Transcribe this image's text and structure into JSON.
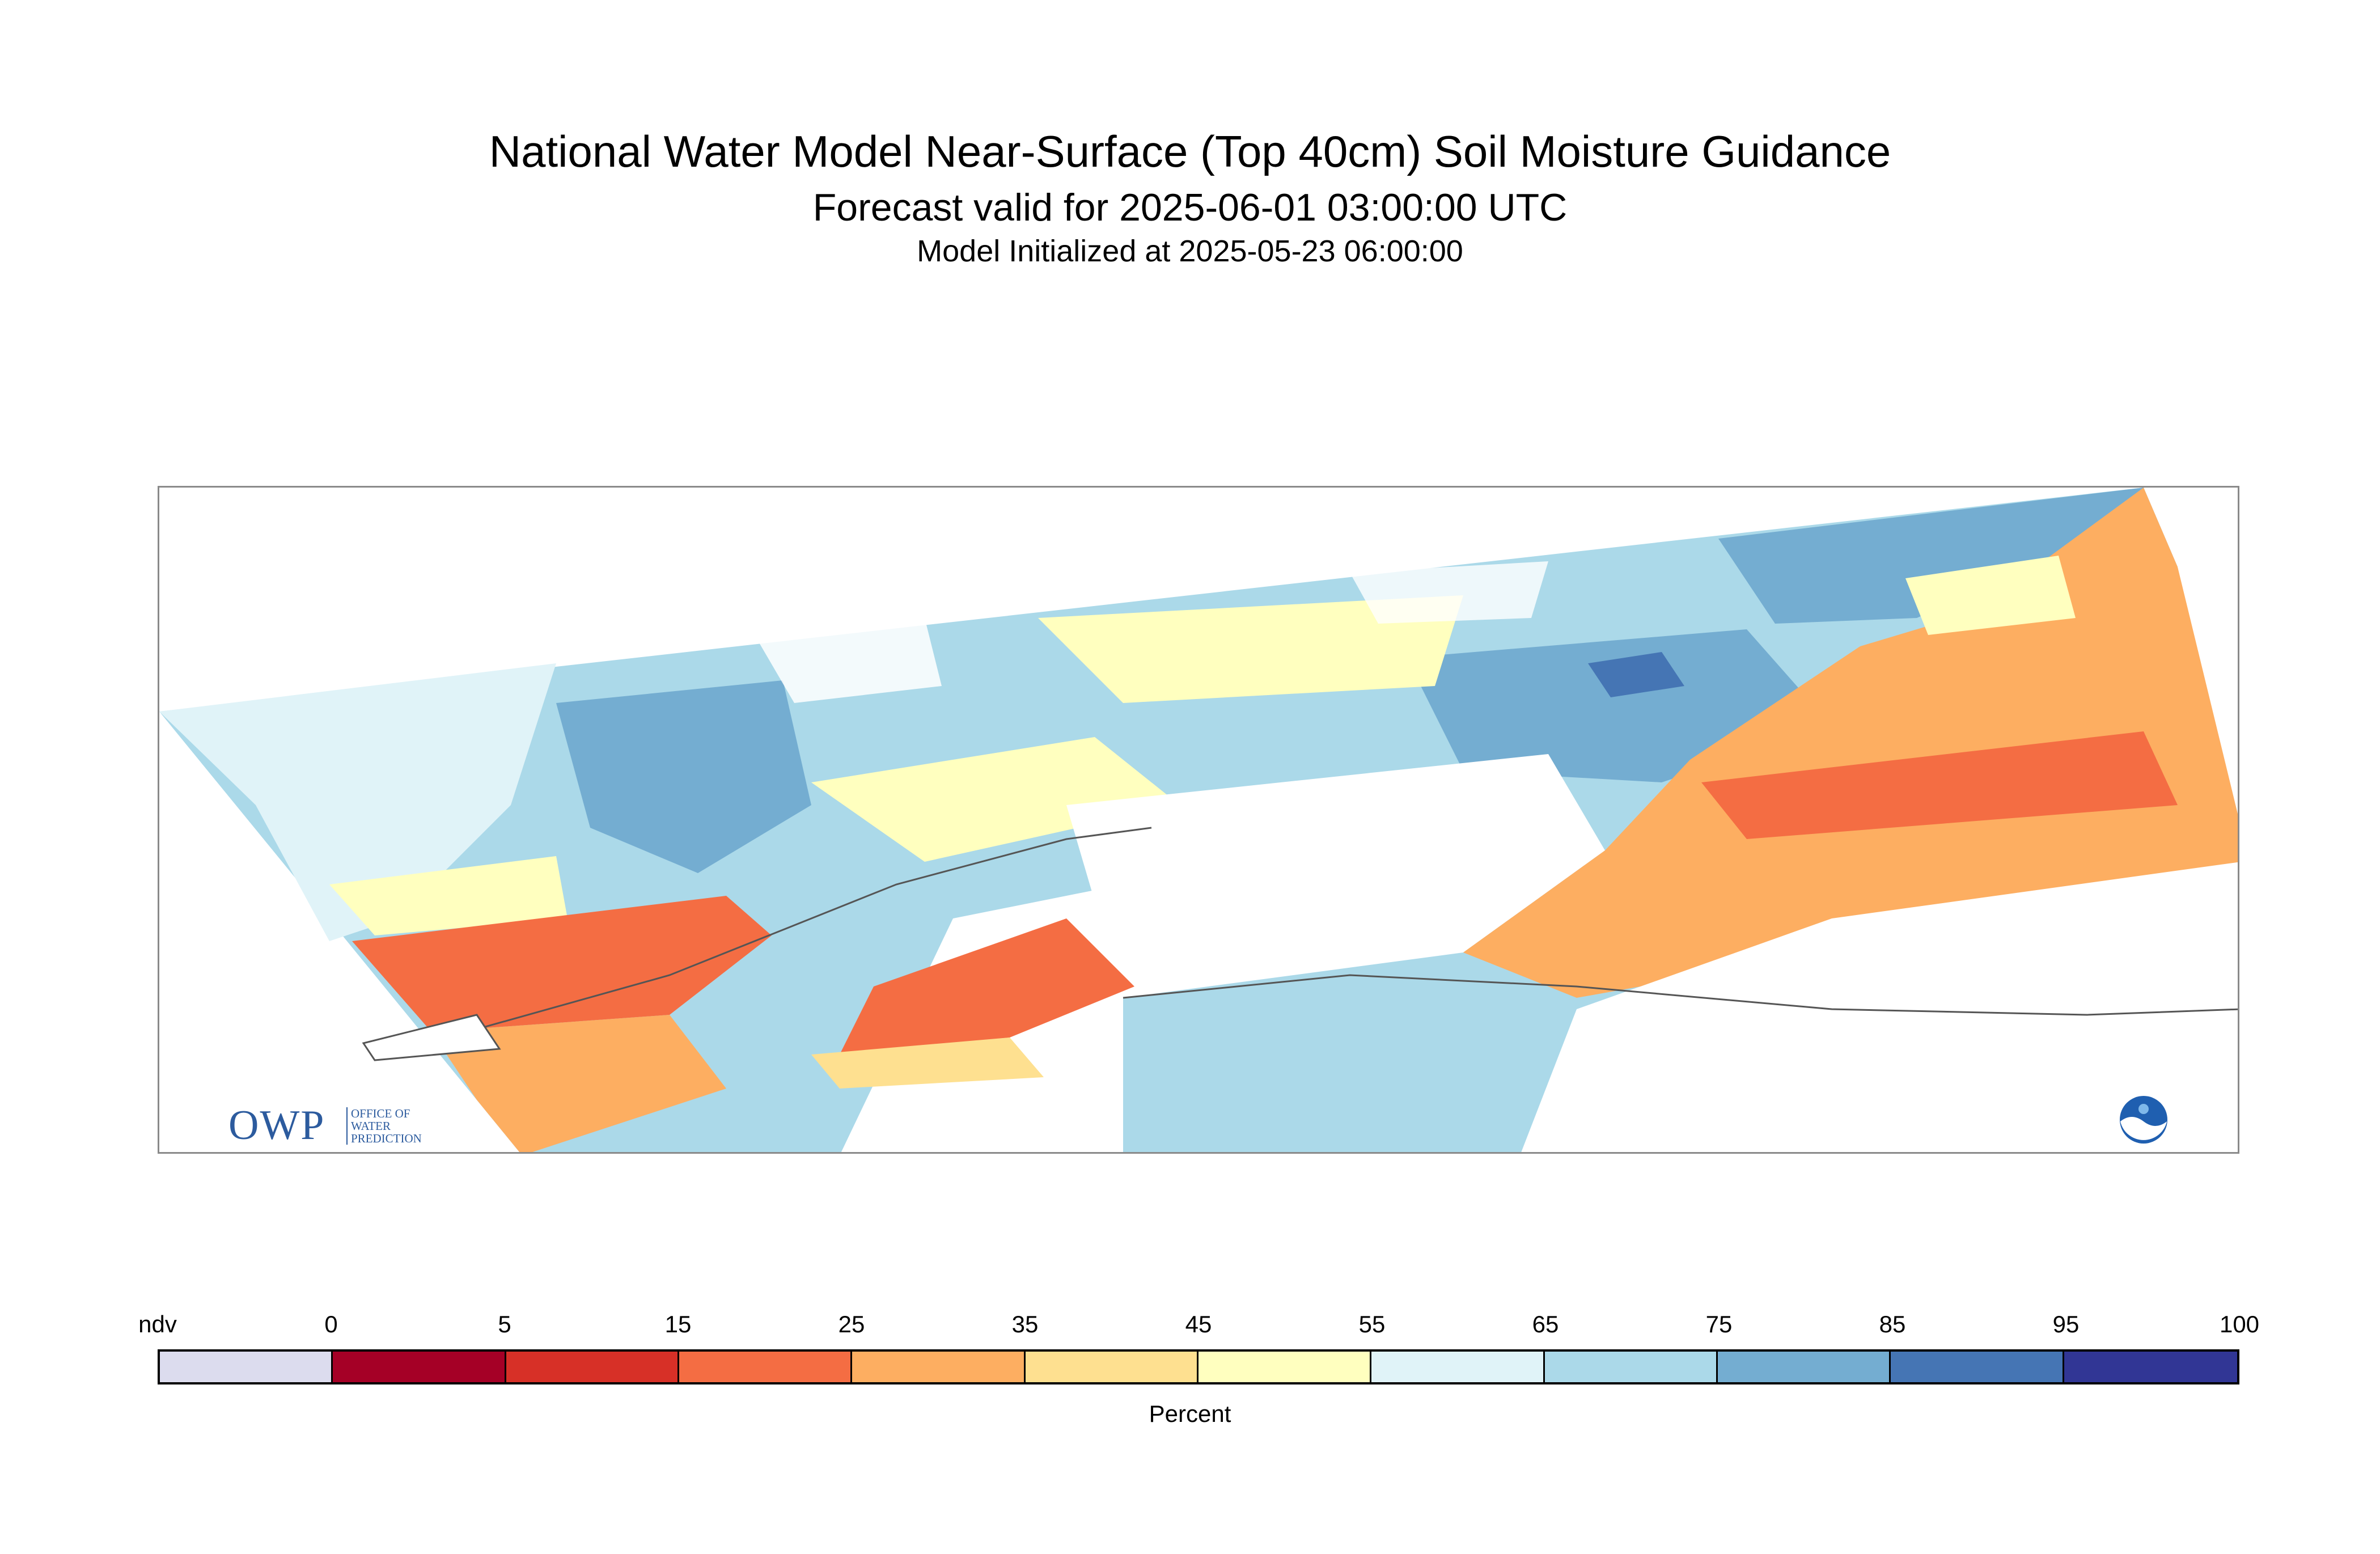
{
  "header": {
    "title": "National Water Model Near-Surface (Top 40cm) Soil Moisture Guidance",
    "subtitle": "Forecast valid for 2025-06-01 03:00:00 UTC",
    "init": "Model Initialized at 2025-05-23 06:00:00"
  },
  "logos": {
    "owp_mark": "OWP",
    "owp_lines": [
      "OFFICE OF",
      "WATER",
      "PREDICTION"
    ],
    "noaa_icon": "noaa-logo"
  },
  "legend": {
    "label": "Percent",
    "ticks": [
      "ndv",
      "0",
      "5",
      "15",
      "25",
      "35",
      "45",
      "55",
      "65",
      "75",
      "85",
      "95",
      "100"
    ],
    "colors": [
      "#dcdcee",
      "#a50026",
      "#d73027",
      "#f46d43",
      "#fdae61",
      "#fee090",
      "#ffffbf",
      "#e0f3f8",
      "#abd9e9",
      "#74add1",
      "#4575b4",
      "#313695"
    ]
  }
}
